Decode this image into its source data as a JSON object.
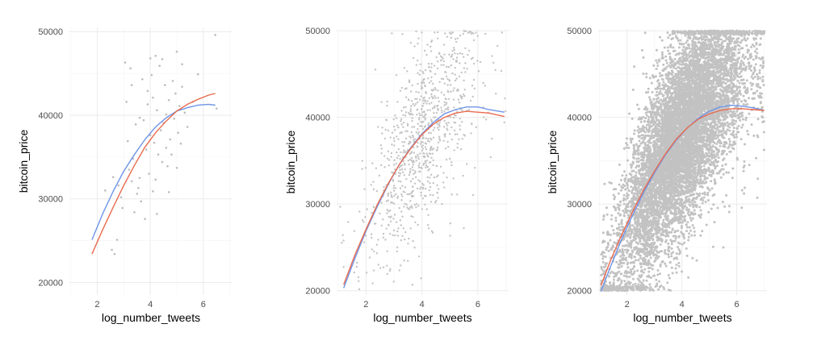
{
  "chart_data": [
    {
      "type": "scatter",
      "xlabel": "log_number_tweets",
      "ylabel": "bitcoin_price",
      "xlim": [
        0.95,
        7.1
      ],
      "ylim": [
        18500,
        50500
      ],
      "x_ticks": [
        2,
        4,
        6
      ],
      "x_tick_labels": [
        "2",
        "4",
        "6"
      ],
      "y_ticks": [
        20000,
        30000,
        40000,
        50000
      ],
      "y_tick_labels": [
        "20000",
        "30000",
        "40000",
        "50000"
      ],
      "grid": true,
      "legend": "none",
      "point_color": "#bdbdbd",
      "points": [
        [
          2.3,
          31000
        ],
        [
          2.55,
          23900
        ],
        [
          2.6,
          32600
        ],
        [
          2.65,
          23400
        ],
        [
          2.75,
          25100
        ],
        [
          2.8,
          31600
        ],
        [
          2.9,
          30200
        ],
        [
          2.95,
          28900
        ],
        [
          3.05,
          46300
        ],
        [
          3.1,
          41600
        ],
        [
          3.15,
          36900
        ],
        [
          3.2,
          33500
        ],
        [
          3.25,
          45600
        ],
        [
          3.3,
          32100
        ],
        [
          3.35,
          34800
        ],
        [
          3.4,
          28400
        ],
        [
          3.45,
          38900
        ],
        [
          3.5,
          30600
        ],
        [
          3.55,
          31300
        ],
        [
          3.6,
          32500
        ],
        [
          3.65,
          29700
        ],
        [
          3.7,
          44300
        ],
        [
          3.75,
          39400
        ],
        [
          3.8,
          27600
        ],
        [
          3.85,
          35900
        ],
        [
          3.9,
          41300
        ],
        [
          3.95,
          33000
        ],
        [
          4.0,
          46800
        ],
        [
          4.0,
          37600
        ],
        [
          4.05,
          44800
        ],
        [
          4.1,
          42100
        ],
        [
          4.1,
          30900
        ],
        [
          4.15,
          36700
        ],
        [
          4.2,
          47100
        ],
        [
          4.2,
          32300
        ],
        [
          4.25,
          40600
        ],
        [
          4.3,
          35300
        ],
        [
          4.35,
          45900
        ],
        [
          4.4,
          38200
        ],
        [
          4.45,
          34400
        ],
        [
          4.5,
          39100
        ],
        [
          4.55,
          43600
        ],
        [
          4.6,
          36100
        ],
        [
          4.6,
          40100
        ],
        [
          4.65,
          33900
        ],
        [
          4.7,
          41800
        ],
        [
          4.75,
          37100
        ],
        [
          4.8,
          35300
        ],
        [
          4.85,
          44100
        ],
        [
          4.9,
          39600
        ],
        [
          4.95,
          42600
        ],
        [
          5.0,
          47600
        ],
        [
          5.0,
          33700
        ],
        [
          5.05,
          37900
        ],
        [
          5.1,
          41100
        ],
        [
          5.15,
          36600
        ],
        [
          5.2,
          43400
        ],
        [
          5.3,
          40300
        ],
        [
          5.4,
          38600
        ],
        [
          5.6,
          41600
        ],
        [
          5.8,
          44900
        ],
        [
          6.45,
          49600
        ],
        [
          6.5,
          40800
        ],
        [
          3.9,
          42900
        ],
        [
          4.25,
          28200
        ],
        [
          3.6,
          39700
        ],
        [
          4.7,
          30800
        ],
        [
          3.3,
          43600
        ],
        [
          5.2,
          46100
        ],
        [
          4.45,
          46700
        ]
      ],
      "series": [
        {
          "color": "#6f95e8",
          "x": [
            1.8,
            2.2,
            2.6,
            3.0,
            3.4,
            3.8,
            4.2,
            4.6,
            5.0,
            5.4,
            5.8,
            6.2,
            6.45
          ],
          "y": [
            25100,
            28200,
            30900,
            33300,
            35300,
            37100,
            38600,
            39700,
            40500,
            40900,
            41200,
            41300,
            41200
          ]
        },
        {
          "color": "#ea6b4f",
          "x": [
            1.8,
            2.2,
            2.6,
            3.0,
            3.4,
            3.8,
            4.2,
            4.6,
            5.0,
            5.4,
            5.8,
            6.2,
            6.45
          ],
          "y": [
            23400,
            26300,
            29000,
            31600,
            34000,
            36200,
            37900,
            39300,
            40500,
            41300,
            41900,
            42400,
            42600
          ]
        }
      ]
    },
    {
      "type": "scatter",
      "xlabel": "log_number_tweets",
      "ylabel": "bitcoin_price",
      "xlim": [
        0.95,
        7.1
      ],
      "ylim": [
        19500,
        50200
      ],
      "x_ticks": [
        2,
        4,
        6
      ],
      "x_tick_labels": [
        "2",
        "4",
        "6"
      ],
      "y_ticks": [
        20000,
        30000,
        40000,
        50000
      ],
      "y_tick_labels": [
        "20000",
        "30000",
        "40000",
        "50000"
      ],
      "grid": true,
      "legend": "none",
      "point_color": "#c4c4c4",
      "n_points": 900,
      "series": [
        {
          "color": "#6f95e8",
          "x": [
            1.2,
            1.6,
            2.0,
            2.4,
            2.8,
            3.2,
            3.6,
            4.0,
            4.4,
            4.8,
            5.2,
            5.6,
            6.0,
            6.4,
            6.95
          ],
          "y": [
            20300,
            23700,
            26900,
            29700,
            32300,
            34600,
            36500,
            38100,
            39400,
            40400,
            40900,
            41200,
            41200,
            40900,
            40600
          ]
        },
        {
          "color": "#ea6b4f",
          "x": [
            1.2,
            1.6,
            2.0,
            2.4,
            2.8,
            3.2,
            3.6,
            4.0,
            4.4,
            4.8,
            5.2,
            5.6,
            6.0,
            6.4,
            6.95
          ],
          "y": [
            20700,
            24100,
            27100,
            29900,
            32400,
            34600,
            36400,
            38000,
            39200,
            40000,
            40500,
            40700,
            40600,
            40500,
            40100
          ]
        }
      ]
    },
    {
      "type": "scatter",
      "xlabel": "log_number_tweets",
      "ylabel": "bitcoin_price",
      "xlim": [
        0.95,
        7.1
      ],
      "ylim": [
        19500,
        50200
      ],
      "x_ticks": [
        2,
        4,
        6
      ],
      "x_tick_labels": [
        "2",
        "4",
        "6"
      ],
      "y_ticks": [
        20000,
        30000,
        40000,
        50000
      ],
      "y_tick_labels": [
        "20000",
        "30000",
        "40000",
        "50000"
      ],
      "grid": true,
      "legend": "none",
      "point_color": "#c2c2c2",
      "n_points": 9000,
      "series": [
        {
          "color": "#6f95e8",
          "x": [
            1.05,
            1.4,
            1.8,
            2.2,
            2.6,
            3.0,
            3.4,
            3.8,
            4.2,
            4.6,
            5.0,
            5.4,
            5.8,
            6.2,
            6.6,
            7.0
          ],
          "y": [
            19900,
            22800,
            25900,
            28700,
            31300,
            33600,
            35700,
            37400,
            38800,
            39900,
            40700,
            41200,
            41400,
            41300,
            41100,
            40800
          ]
        },
        {
          "color": "#ea6b4f",
          "x": [
            1.05,
            1.4,
            1.8,
            2.2,
            2.6,
            3.0,
            3.4,
            3.8,
            4.2,
            4.6,
            5.0,
            5.4,
            5.8,
            6.2,
            6.6,
            7.0
          ],
          "y": [
            20600,
            23500,
            26400,
            29100,
            31600,
            33800,
            35800,
            37500,
            38800,
            39800,
            40400,
            40800,
            41000,
            41000,
            40900,
            40800
          ]
        }
      ]
    }
  ]
}
